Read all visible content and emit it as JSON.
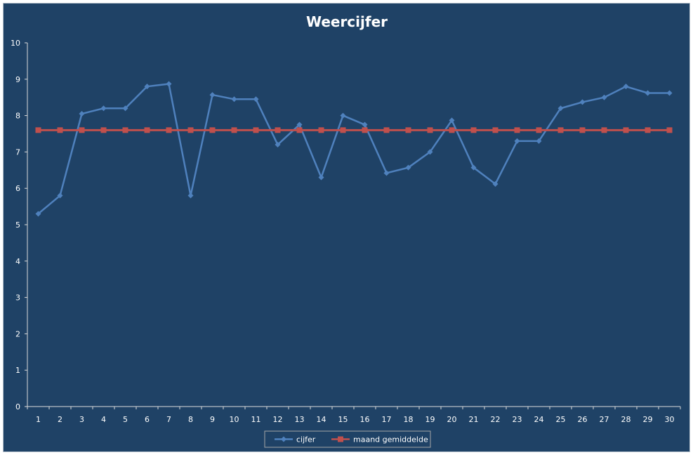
{
  "chart_data": {
    "type": "line",
    "title": "Weercijfer",
    "xlabel": "",
    "ylabel": "",
    "categories": [
      "1",
      "2",
      "3",
      "4",
      "5",
      "6",
      "7",
      "8",
      "9",
      "10",
      "11",
      "12",
      "13",
      "14",
      "15",
      "16",
      "17",
      "18",
      "19",
      "20",
      "21",
      "22",
      "23",
      "24",
      "25",
      "26",
      "27",
      "28",
      "29",
      "30"
    ],
    "ylim": [
      0,
      10
    ],
    "yticks": [
      "0",
      "1",
      "2",
      "3",
      "4",
      "5",
      "6",
      "7",
      "8",
      "9",
      "10"
    ],
    "grid": false,
    "legend_position": "bottom",
    "series": [
      {
        "name": "cijfer",
        "color": "#4f81bd",
        "marker": "diamond",
        "values": [
          5.3,
          5.8,
          8.05,
          8.2,
          8.2,
          8.8,
          8.87,
          5.8,
          8.57,
          8.45,
          8.45,
          7.2,
          7.75,
          6.3,
          8.0,
          7.75,
          6.42,
          6.57,
          7.0,
          7.87,
          6.57,
          6.12,
          7.3,
          7.3,
          8.2,
          8.37,
          8.5,
          8.8,
          8.62,
          8.62
        ]
      },
      {
        "name": "maand gemiddelde",
        "color": "#c0504d",
        "marker": "square",
        "values": [
          7.6,
          7.6,
          7.6,
          7.6,
          7.6,
          7.6,
          7.6,
          7.6,
          7.6,
          7.6,
          7.6,
          7.6,
          7.6,
          7.6,
          7.6,
          7.6,
          7.6,
          7.6,
          7.6,
          7.6,
          7.6,
          7.6,
          7.6,
          7.6,
          7.6,
          7.6,
          7.6,
          7.6,
          7.6,
          7.6
        ]
      }
    ]
  }
}
